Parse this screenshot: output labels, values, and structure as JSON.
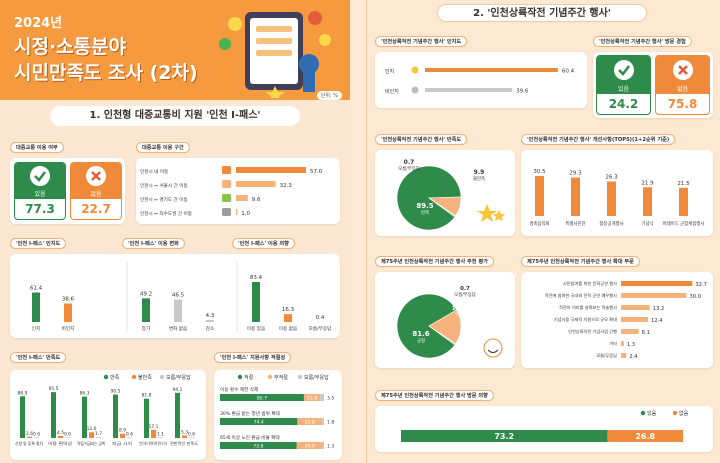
{
  "colors": {
    "orange": "#f08a3b",
    "green": "#2e8b4a",
    "lightorange": "#f5b27a",
    "gray": "#c9c9c9",
    "banner": "#f59a3e"
  },
  "left": {
    "year": "2024년",
    "title1": "시정·소통분야",
    "title2": "시민만족도 조사 (2차)",
    "unit": "단위: %",
    "section1_title": "1. 인천형 대중교통비 지원 '인천 I-패스'",
    "usage": {
      "label": "대중교통 이용 여부",
      "yes_label": "있음",
      "yes": "77.3",
      "no_label": "없음",
      "no": "22.7"
    },
    "route": {
      "label": "대중교통 이용 구간",
      "items": [
        {
          "label": "인천시 내 이동",
          "value": "57.0"
        },
        {
          "label": "인천시 ↔ 서울시 간 이동",
          "value": "32.3"
        },
        {
          "label": "인천시 ↔ 경기도 간 이동",
          "value": "9.6"
        },
        {
          "label": "인천시 ↔ 타수도권 간 이동",
          "value": "1.0"
        }
      ]
    },
    "awareness": {
      "label": "'인천 I-패스' 인지도",
      "bars": [
        {
          "label": "인지",
          "value": "61.4"
        },
        {
          "label": "비인지",
          "value": "38.6"
        }
      ]
    },
    "change": {
      "label": "'인천 I-패스' 이용 변화",
      "bars": [
        {
          "label": "증가",
          "value": "49.2"
        },
        {
          "label": "변화 없음",
          "value": "46.5"
        },
        {
          "label": "감소",
          "value": "4.3"
        }
      ]
    },
    "intent": {
      "label": "'인천 I-패스' 이용 의향",
      "bars": [
        {
          "label": "이용 있음",
          "value": "83.4"
        },
        {
          "label": "이용 없음",
          "value": "16.3"
        },
        {
          "label": "모름/무응답",
          "value": "0.4"
        }
      ]
    },
    "satisfaction": {
      "label": "'인천 I-패스' 만족도",
      "legend": [
        "만족",
        "불만족",
        "모름/무응답"
      ],
      "groups": [
        {
          "label": "신청 및 등록 절차",
          "v": [
            "86.9",
            "2.6",
            "0.6"
          ]
        },
        {
          "label": "이용 편의성",
          "v": [
            "95.5",
            "4.5",
            "0.0"
          ]
        },
        {
          "label": "적립/지급되는 금액",
          "v": [
            "86.3",
            "12.0",
            "1.7"
          ]
        },
        {
          "label": "지급 시기",
          "v": [
            "90.5",
            "8.9",
            "0.6"
          ]
        },
        {
          "label": "'인천 I-패스' 혜택에 대한 홍보 및 안내",
          "v": [
            "81.8",
            "17.1",
            "1.1"
          ]
        },
        {
          "label": "전반적인 만족도",
          "v": [
            "94.1",
            "5.3",
            "0.6"
          ]
        }
      ]
    },
    "support": {
      "label": "'인천 I-패스' 지원사항 적절성",
      "legend": [
        "적절",
        "부적절",
        "모름/무응답"
      ],
      "rows": [
        {
          "label": "이용 횟수 제한 삭제",
          "v": [
            "80.7",
            "15.8",
            "3.5"
          ]
        },
        {
          "label": "30% 환급 받는 청년 범위 확대",
          "v": [
            "74.4",
            "23.8",
            "1.8"
          ]
        },
        {
          "label": "65세 이상 노인 환급 비율 확대",
          "v": [
            "73.8",
            "24.9",
            "1.3"
          ]
        }
      ]
    }
  },
  "right": {
    "section2_title": "2. '인천상륙작전 기념주간 행사'",
    "awareness": {
      "label": "'인천상륙작전 기념주간 행사' 인지도",
      "rows": [
        {
          "label": "인지",
          "value": "60.4"
        },
        {
          "label": "비인지",
          "value": "39.6"
        }
      ]
    },
    "visit": {
      "label": "'인천상륙작전 기념주간 행사' 방문 경험",
      "yes_label": "있음",
      "yes": "24.2",
      "no_label": "없음",
      "no": "75.8"
    },
    "satisfaction": {
      "label": "'인천상륙작전 기념주간 행사' 만족도",
      "slices": [
        {
          "label": "만족",
          "value": "89.5"
        },
        {
          "label": "불만족",
          "value": "9.9"
        },
        {
          "label": "모름/무응답",
          "value": "0.7"
        }
      ]
    },
    "improve": {
      "label": "'인천상륙작전 기념주간 행사' 개선사항(TOP5)(1+2순위 기준)",
      "bars": [
        {
          "label": "경축음악회",
          "value": "30.5"
        },
        {
          "label": "특별사진전",
          "value": "29.3"
        },
        {
          "label": "합창공개행사",
          "value": "26.3"
        },
        {
          "label": "기념식",
          "value": "21.9"
        },
        {
          "label": "퍼레이드 군함체험행사",
          "value": "21.5"
        }
      ]
    },
    "recommend": {
      "label": "제75주년 인천상륙작전 기념주간 행사 추천 평가",
      "slices": [
        {
          "label": "긍정",
          "value": "81.6"
        },
        {
          "label": "부정",
          "value": "17.7"
        },
        {
          "label": "모름/무응답",
          "value": "0.7"
        }
      ]
    },
    "expand": {
      "label": "제75주년 인천상륙작전 기념주간 행사 확대 부문",
      "rows": [
        {
          "label": "시민참여를 위한 문화공연 행사",
          "value": "32.7"
        },
        {
          "label": "작전에 참여한 국내외 전직 군인 예우행사",
          "value": "30.0"
        },
        {
          "label": "작전의 의미를 살펴보는 학술행사",
          "value": "13.2"
        },
        {
          "label": "기념식을 국제적 차원으로 규모 확대",
          "value": "12.4"
        },
        {
          "label": "인천상륙작전 기념사업 간행",
          "value": "8.1"
        },
        {
          "label": "기타",
          "value": "1.3"
        },
        {
          "label": "모름/무응답",
          "value": "2.4"
        }
      ]
    },
    "visit_intent": {
      "label": "제75주년 인천상륙작전 기념주간 행사 방문 의향",
      "legend": [
        "있음",
        "없음"
      ],
      "yes": "73.2",
      "no": "26.8"
    }
  },
  "chart_data": [
    {
      "type": "bar",
      "title": "'인천 I-패스' 인지도",
      "categories": [
        "인지",
        "비인지"
      ],
      "values": [
        61.4,
        38.6
      ]
    },
    {
      "type": "bar",
      "title": "'인천 I-패스' 이용 변화",
      "categories": [
        "증가",
        "변화 없음",
        "감소"
      ],
      "values": [
        49.2,
        46.5,
        4.3
      ]
    },
    {
      "type": "bar",
      "title": "'인천 I-패스' 이용 의향",
      "categories": [
        "이용 있음",
        "이용 없음",
        "모름/무응답"
      ],
      "values": [
        83.4,
        16.3,
        0.4
      ]
    },
    {
      "type": "bar",
      "title": "대중교통 이용 구간",
      "categories": [
        "인천시 내 이동",
        "인천시 ↔ 서울시 간 이동",
        "인천시 ↔ 경기도 간 이동",
        "인천시 ↔ 타수도권 간 이동"
      ],
      "values": [
        57.0,
        32.3,
        9.6,
        1.0
      ]
    },
    {
      "type": "bar",
      "title": "'인천 I-패스' 만족도",
      "categories": [
        "신청 및 등록 절차",
        "이용 편의성",
        "적립/지급되는 금액",
        "지급 시기",
        "'인천 I-패스' 혜택에 대한 홍보 및 안내",
        "전반적인 만족도"
      ],
      "series": [
        {
          "name": "만족",
          "values": [
            86.9,
            95.5,
            86.3,
            90.5,
            81.8,
            94.1
          ]
        },
        {
          "name": "불만족",
          "values": [
            2.6,
            4.5,
            12.0,
            8.9,
            17.1,
            5.3
          ]
        },
        {
          "name": "모름/무응답",
          "values": [
            0.6,
            0.0,
            1.7,
            0.6,
            1.1,
            0.6
          ]
        }
      ]
    },
    {
      "type": "bar",
      "title": "'인천 I-패스' 지원사항 적절성",
      "categories": [
        "이용 횟수 제한 삭제",
        "30% 환급 받는 청년 범위 확대",
        "65세 이상 노인 환급 비율 확대"
      ],
      "series": [
        {
          "name": "적절",
          "values": [
            80.7,
            74.4,
            73.8
          ]
        },
        {
          "name": "부적절",
          "values": [
            15.8,
            23.8,
            24.9
          ]
        },
        {
          "name": "모름/무응답",
          "values": [
            3.5,
            1.8,
            1.3
          ]
        }
      ]
    },
    {
      "type": "bar",
      "title": "'인천상륙작전 기념주간 행사' 인지도",
      "categories": [
        "인지",
        "비인지"
      ],
      "values": [
        60.4,
        39.6
      ]
    },
    {
      "type": "pie",
      "title": "'인천상륙작전 기념주간 행사' 만족도",
      "categories": [
        "만족",
        "불만족",
        "모름/무응답"
      ],
      "values": [
        89.5,
        9.9,
        0.7
      ]
    },
    {
      "type": "bar",
      "title": "'인천상륙작전 기념주간 행사' 개선사항(TOP5)(1+2순위 기준)",
      "categories": [
        "경축음악회",
        "특별사진전",
        "합창공개행사",
        "기념식",
        "퍼레이드 군함체험행사"
      ],
      "values": [
        30.5,
        29.3,
        26.3,
        21.9,
        21.5
      ]
    },
    {
      "type": "pie",
      "title": "제75주년 인천상륙작전 기념주간 행사 추천 평가",
      "categories": [
        "긍정",
        "부정",
        "모름/무응답"
      ],
      "values": [
        81.6,
        17.7,
        0.7
      ]
    },
    {
      "type": "bar",
      "title": "제75주년 인천상륙작전 기념주간 행사 확대 부문",
      "categories": [
        "시민참여를 위한 문화공연 행사",
        "작전에 참여한 국내외 전직 군인 예우행사",
        "작전의 의미를 살펴보는 학술행사",
        "기념식을 국제적 차원으로 규모 확대",
        "인천상륙작전 기념사업 간행",
        "기타",
        "모름/무응답"
      ],
      "values": [
        32.7,
        30.0,
        13.2,
        12.4,
        8.1,
        1.3,
        2.4
      ]
    },
    {
      "type": "bar",
      "title": "제75주년 인천상륙작전 기념주간 행사 방문 의향",
      "categories": [
        "있음",
        "없음"
      ],
      "values": [
        73.2,
        26.8
      ]
    }
  ]
}
